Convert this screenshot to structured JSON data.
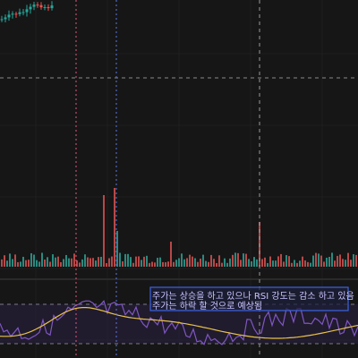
{
  "annotation": {
    "lines": [
      "주가는 상승을 하고 있으나 RSI 강도는 감소 하고 있음",
      "주가는 하락 할 것으로 예상됨"
    ]
  }
}
